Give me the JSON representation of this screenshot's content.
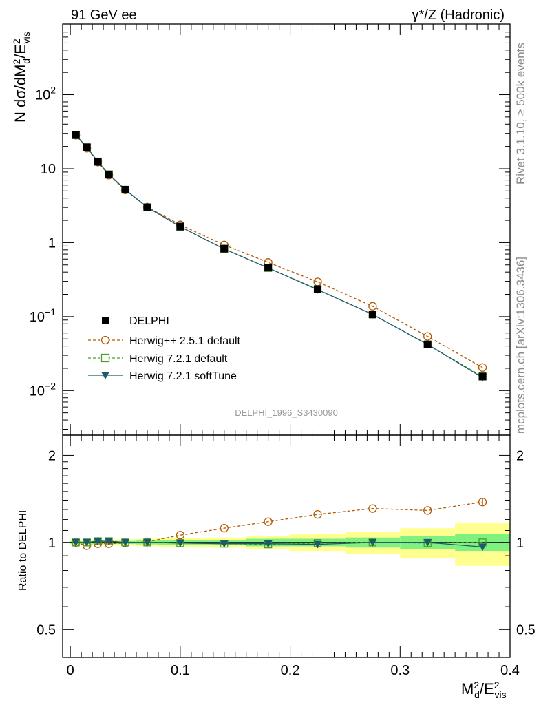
{
  "header": {
    "left": "91 GeV ee",
    "right": "γ*/Z (Hadronic)"
  },
  "side": {
    "top": "Rivet 3.1.10, ≥ 500k events",
    "bottom": "mcplots.cern.ch [arXiv:1306.3436]"
  },
  "watermark": "DELPHI_1996_S3430090",
  "colors": {
    "data": "#000000",
    "hpp": "#b35900",
    "h721": "#4aa028",
    "soft": "#1e5a6e",
    "band_inner": "#80f080",
    "band_outer": "#ffff90"
  },
  "chart_data": [
    {
      "type": "scatter",
      "panel": "main",
      "ylabel_tex": "N dσ/dM²d/E²vis",
      "yscale": "log",
      "ylim": [
        0.0025,
        900
      ],
      "xlim": [
        -0.007,
        0.4
      ],
      "ytick_labels": [
        "10^-2",
        "10^-1",
        "1",
        "10",
        "10^2"
      ],
      "x": [
        0.005,
        0.015,
        0.025,
        0.035,
        0.05,
        0.07,
        0.1,
        0.14,
        0.18,
        0.225,
        0.275,
        0.325,
        0.375
      ],
      "series": [
        {
          "name": "DELPHI",
          "key": "data",
          "marker": "square-filled",
          "values": [
            28.5,
            19.5,
            12.4,
            8.3,
            5.2,
            3.0,
            1.65,
            0.83,
            0.46,
            0.235,
            0.107,
            0.042,
            0.0155
          ]
        },
        {
          "name": "Herwig++ 2.5.1 default",
          "key": "hpp",
          "marker": "circle-open",
          "dash": true,
          "values": [
            28.4,
            18.9,
            12.3,
            8.2,
            5.15,
            3.02,
            1.74,
            0.93,
            0.54,
            0.295,
            0.138,
            0.054,
            0.0205
          ]
        },
        {
          "name": "Herwig 7.2.1 default",
          "key": "h721",
          "marker": "square-open",
          "dash": true,
          "values": [
            28.5,
            19.4,
            12.5,
            8.4,
            5.2,
            3.0,
            1.64,
            0.82,
            0.455,
            0.234,
            0.107,
            0.042,
            0.0155
          ]
        },
        {
          "name": "Herwig 7.2.1 softTune",
          "key": "soft",
          "marker": "triangle-down-filled",
          "values": [
            28.5,
            19.4,
            12.5,
            8.4,
            5.2,
            3.0,
            1.64,
            0.82,
            0.455,
            0.231,
            0.107,
            0.042,
            0.015
          ]
        }
      ]
    },
    {
      "type": "scatter",
      "panel": "ratio",
      "ylabel": "Ratio to DELPHI",
      "xlabel_tex": "M²d/E²vis",
      "ylim": [
        0.4,
        2.35
      ],
      "yscale": "log",
      "ytick_labels": [
        "0.5",
        "1",
        "2"
      ],
      "xtick_labels": [
        "0",
        "0.1",
        "0.2",
        "0.3",
        "0.4"
      ],
      "xlim": [
        -0.007,
        0.4
      ],
      "x": [
        0.005,
        0.015,
        0.025,
        0.035,
        0.05,
        0.07,
        0.1,
        0.14,
        0.18,
        0.225,
        0.275,
        0.325,
        0.375
      ],
      "band_edges": [
        0.0,
        0.01,
        0.02,
        0.03,
        0.04,
        0.06,
        0.08,
        0.12,
        0.16,
        0.2,
        0.25,
        0.3,
        0.35,
        0.4
      ],
      "band_inner": [
        0.01,
        0.01,
        0.012,
        0.012,
        0.012,
        0.015,
        0.02,
        0.02,
        0.03,
        0.03,
        0.04,
        0.05,
        0.07
      ],
      "band_outer": [
        0.02,
        0.02,
        0.022,
        0.022,
        0.025,
        0.03,
        0.035,
        0.04,
        0.05,
        0.07,
        0.09,
        0.12,
        0.17
      ],
      "series": [
        {
          "name": "Herwig++ 2.5.1 default",
          "key": "hpp",
          "values": [
            1.0,
            0.975,
            0.99,
            0.99,
            0.995,
            1.005,
            1.06,
            1.12,
            1.18,
            1.25,
            1.31,
            1.29,
            1.38
          ]
        },
        {
          "name": "Herwig 7.2.1 default",
          "key": "h721",
          "values": [
            1.0,
            1.0,
            1.01,
            1.01,
            1.0,
            1.0,
            0.995,
            0.99,
            0.985,
            0.995,
            1.0,
            0.995,
            1.0
          ]
        },
        {
          "name": "Herwig 7.2.1 softTune",
          "key": "soft",
          "values": [
            1.0,
            1.0,
            1.01,
            1.01,
            1.0,
            1.0,
            0.995,
            0.99,
            0.99,
            0.985,
            1.0,
            1.0,
            0.965
          ]
        }
      ]
    }
  ]
}
